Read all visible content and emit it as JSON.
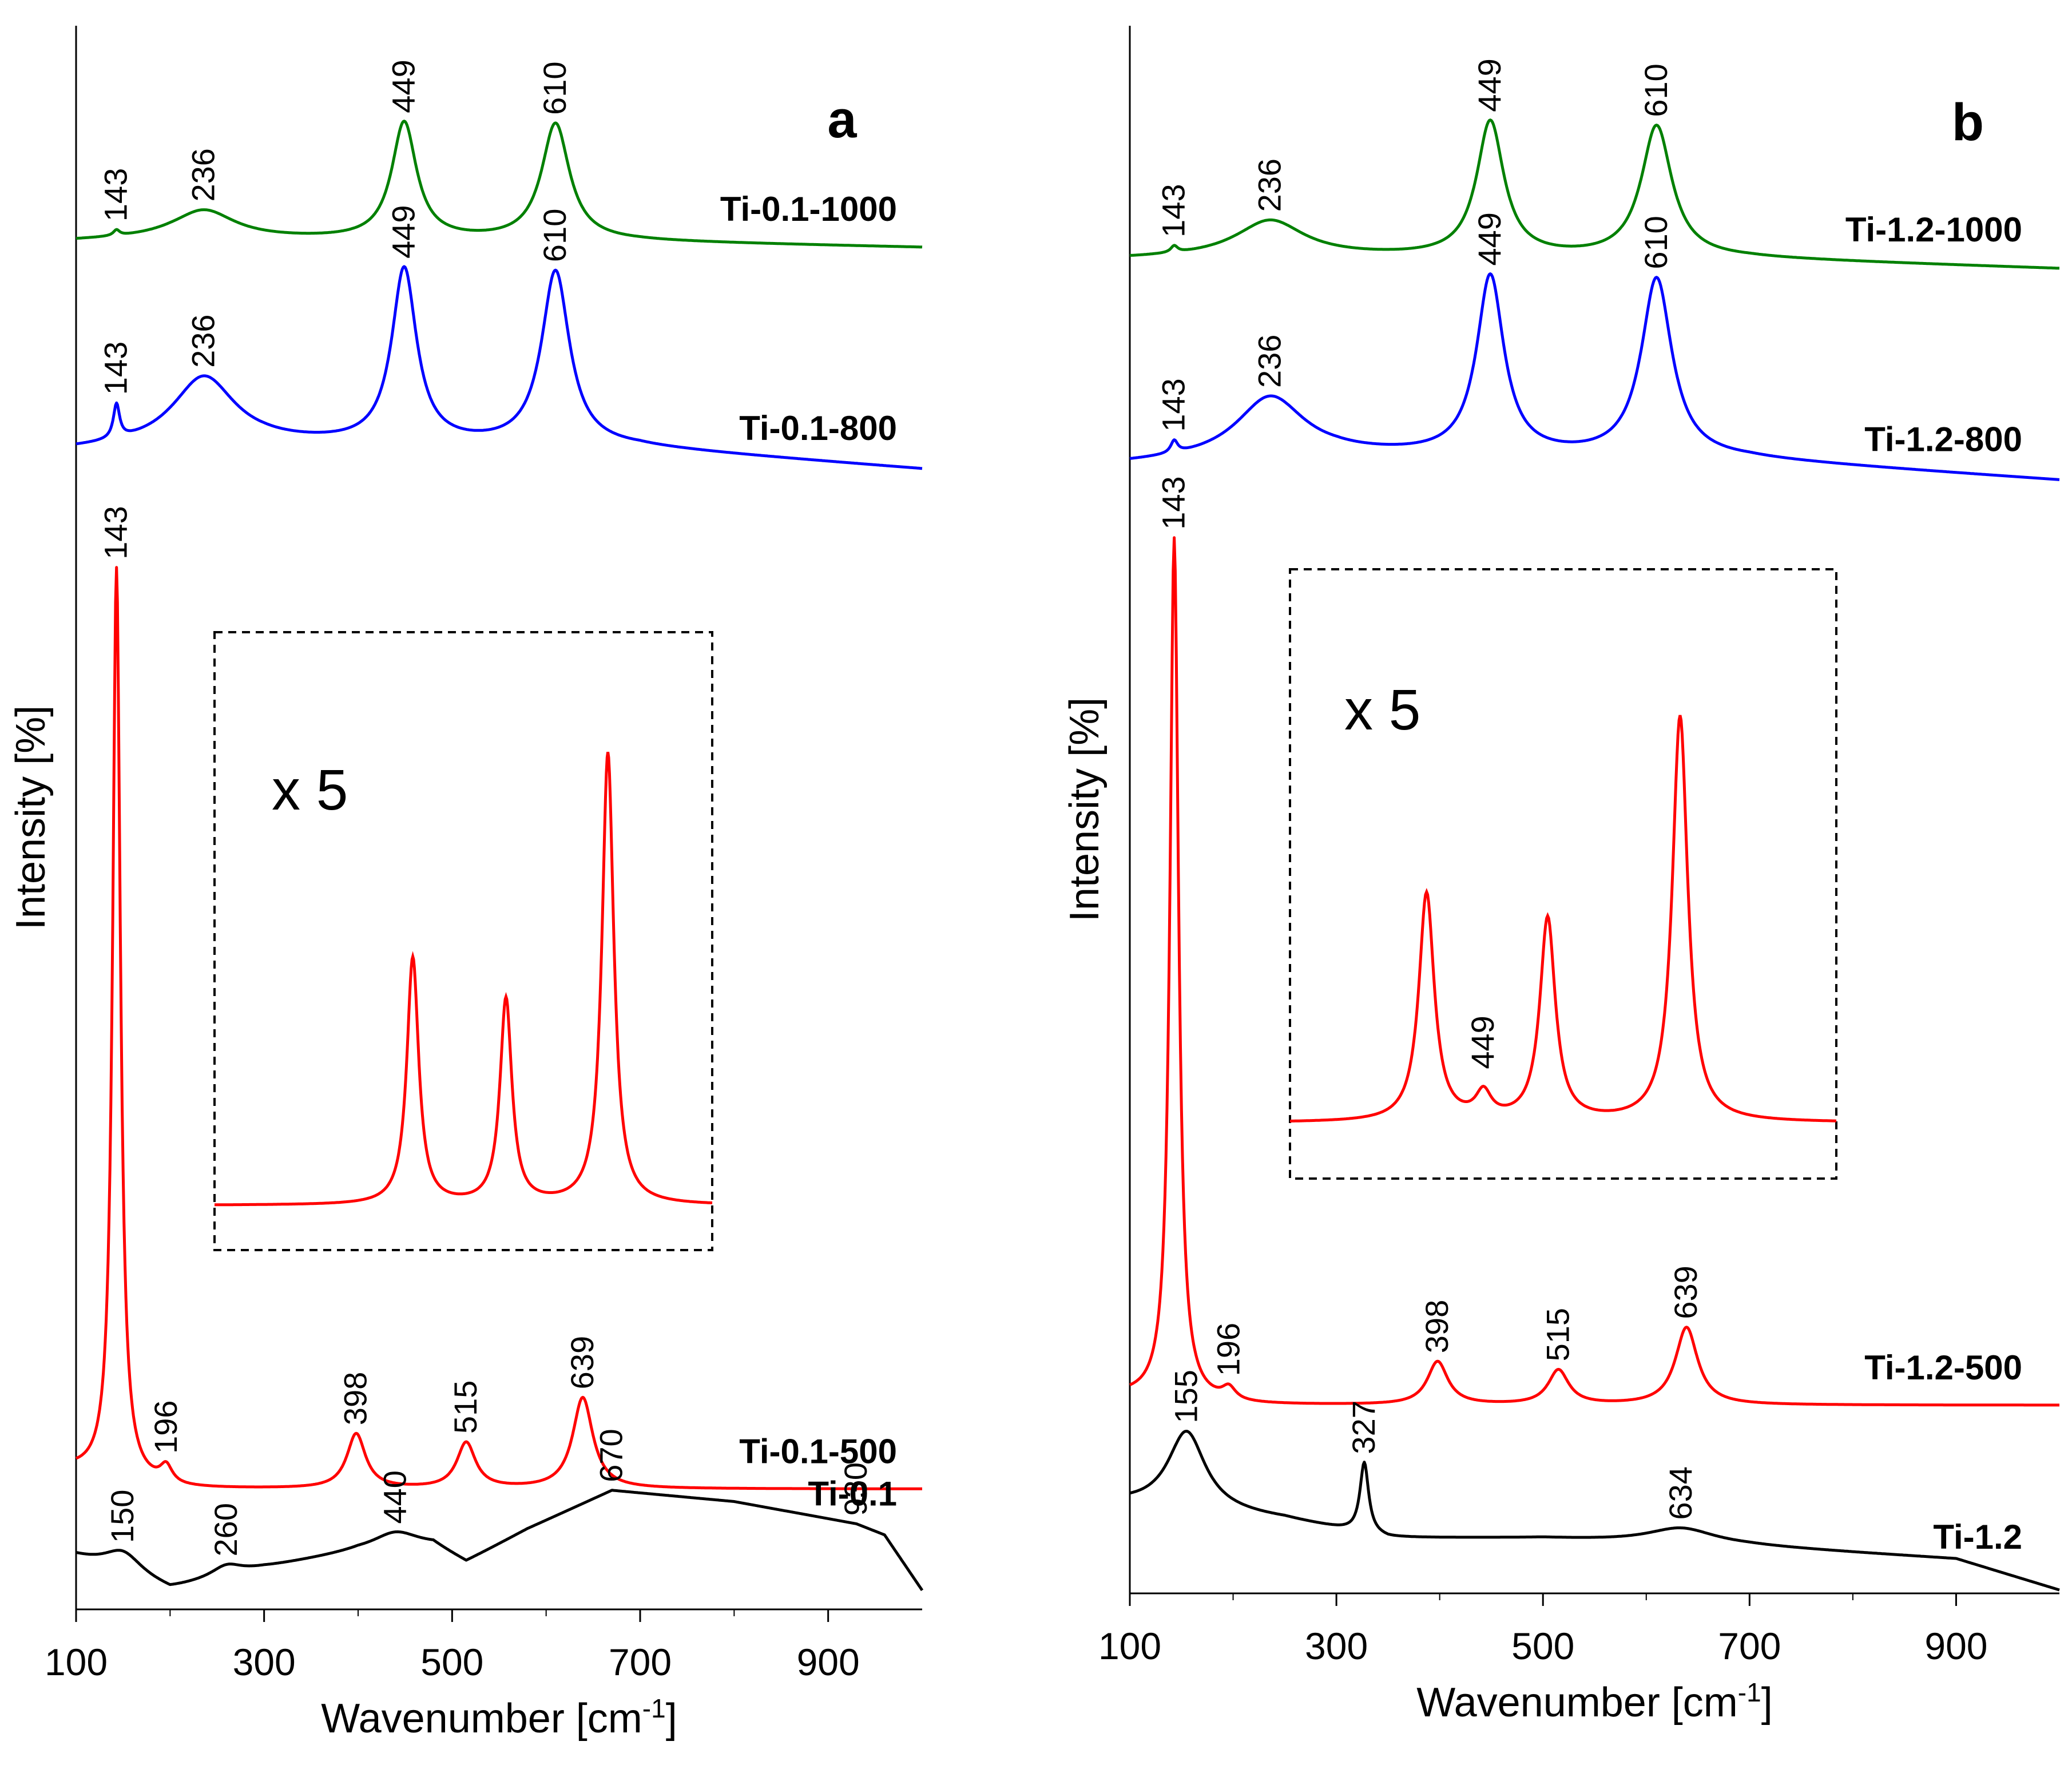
{
  "chart_data": [
    {
      "type": "line",
      "panel_label": "a",
      "xlabel": "Wavenumber [cm",
      "xlabel_sup": "-1",
      "xlabel_end": "]",
      "ylabel": "Intensity [%]",
      "xlim": [
        100,
        1000
      ],
      "xticks": [
        100,
        300,
        500,
        700,
        900
      ],
      "inset": {
        "magnification": "x 5",
        "color": "#ff0000",
        "x_span": [
          145,
          770
        ],
        "peaks": [
          {
            "x": 394,
            "h": 0.47
          },
          {
            "x": 511,
            "h": 0.39
          },
          {
            "x": 639,
            "h": 0.86
          }
        ],
        "peak_labels": []
      },
      "series": [
        {
          "name": "Ti-0.1-1000",
          "color": "#008000",
          "offset": 0.86,
          "height": 0.09,
          "baseline": [
            [
              100,
              0.045
            ],
            [
              200,
              0.06
            ],
            [
              300,
              0.055
            ],
            [
              700,
              0.04
            ],
            [
              1000,
              0.0
            ]
          ],
          "peaks": [
            {
              "x": 143,
              "h": 0.04,
              "w": 4
            },
            {
              "x": 236,
              "h": 0.2,
              "w": 40
            },
            {
              "x": 449,
              "h": 0.82,
              "w": 16
            },
            {
              "x": 610,
              "h": 0.82,
              "w": 18
            }
          ],
          "peak_labels": [
            "143",
            "236",
            "449",
            "610"
          ]
        },
        {
          "name": "Ti-0.1-800",
          "color": "#0000ff",
          "offset": 0.72,
          "height": 0.12,
          "baseline": [
            [
              100,
              0.1
            ],
            [
              200,
              0.12
            ],
            [
              300,
              0.13
            ],
            [
              700,
              0.11
            ],
            [
              1000,
              0.0
            ]
          ],
          "peaks": [
            {
              "x": 143,
              "h": 0.18,
              "w": 4
            },
            {
              "x": 236,
              "h": 0.36,
              "w": 40
            },
            {
              "x": 449,
              "h": 0.92,
              "w": 16
            },
            {
              "x": 610,
              "h": 0.92,
              "w": 18
            }
          ],
          "peak_labels": [
            "143",
            "236",
            "449",
            "610"
          ]
        },
        {
          "name": "Ti-0.1-500",
          "color": "#ff0000",
          "offset": 0.076,
          "height": 0.575,
          "baseline": [
            [
              100,
              0.02
            ],
            [
              200,
              0.0
            ],
            [
              1000,
              0.0
            ]
          ],
          "peaks": [
            {
              "x": 143,
              "h": 1.0,
              "w": 5
            },
            {
              "x": 196,
              "h": 0.02,
              "w": 8
            },
            {
              "x": 398,
              "h": 0.06,
              "w": 12
            },
            {
              "x": 515,
              "h": 0.05,
              "w": 12
            },
            {
              "x": 639,
              "h": 0.1,
              "w": 13
            }
          ],
          "peak_labels": [
            "143",
            "196",
            "398",
            "515",
            "639"
          ]
        },
        {
          "name": "Ti-0.1",
          "color": "#000000",
          "offset": 0.012,
          "height": 0.07,
          "baseline": [
            [
              100,
              0.3
            ],
            [
              200,
              0.0
            ],
            [
              300,
              0.2
            ],
            [
              400,
              0.35
            ],
            [
              480,
              0.4
            ],
            [
              515,
              0.25
            ],
            [
              580,
              0.55
            ],
            [
              670,
              0.9
            ],
            [
              800,
              0.8
            ],
            [
              930,
              0.6
            ],
            [
              960,
              0.5
            ],
            [
              1000,
              0.0
            ]
          ],
          "peaks": [
            {
              "x": 150,
              "h": 0.2,
              "w": 25
            },
            {
              "x": 260,
              "h": 0.1,
              "w": 20
            },
            {
              "x": 440,
              "h": 0.15,
              "w": 30
            }
          ],
          "peak_labels": [
            "150",
            "260",
            "440",
            "670",
            "930"
          ]
        }
      ]
    },
    {
      "type": "line",
      "panel_label": "b",
      "xlabel": "Wavenumber [cm",
      "xlabel_sup": "-1",
      "xlabel_end": "]",
      "ylabel": "Intensity [%]",
      "xlim": [
        100,
        1000
      ],
      "xticks": [
        100,
        300,
        500,
        700,
        900
      ],
      "inset": {
        "magnification": "x 5",
        "color": "#ff0000",
        "x_span": [
          262,
          790
        ],
        "peaks": [
          {
            "x": 394,
            "h": 0.45
          },
          {
            "x": 449,
            "h": 0.05
          },
          {
            "x": 511,
            "h": 0.4
          },
          {
            "x": 639,
            "h": 0.8
          }
        ],
        "peak_labels": [
          "449"
        ]
      },
      "series": [
        {
          "name": "Ti-1.2-1000",
          "color": "#008000",
          "offset": 0.845,
          "height": 0.105,
          "baseline": [
            [
              100,
              0.06
            ],
            [
              200,
              0.07
            ],
            [
              300,
              0.07
            ],
            [
              700,
              0.06
            ],
            [
              1000,
              0.0
            ]
          ],
          "peaks": [
            {
              "x": 143,
              "h": 0.04,
              "w": 4
            },
            {
              "x": 236,
              "h": 0.22,
              "w": 40
            },
            {
              "x": 449,
              "h": 0.82,
              "w": 16
            },
            {
              "x": 610,
              "h": 0.8,
              "w": 18
            }
          ],
          "peak_labels": [
            "143",
            "236",
            "449",
            "610"
          ]
        },
        {
          "name": "Ti-1.2-800",
          "color": "#0000ff",
          "offset": 0.71,
          "height": 0.13,
          "baseline": [
            [
              100,
              0.08
            ],
            [
              200,
              0.1
            ],
            [
              300,
              0.12
            ],
            [
              700,
              0.1
            ],
            [
              1000,
              0.0
            ]
          ],
          "peaks": [
            {
              "x": 143,
              "h": 0.06,
              "w": 4
            },
            {
              "x": 236,
              "h": 0.3,
              "w": 40
            },
            {
              "x": 449,
              "h": 0.88,
              "w": 16
            },
            {
              "x": 610,
              "h": 0.88,
              "w": 18
            }
          ],
          "peak_labels": [
            "143",
            "236",
            "449",
            "610"
          ]
        },
        {
          "name": "Ti-1.2-500",
          "color": "#ff0000",
          "offset": 0.12,
          "height": 0.55,
          "baseline": [
            [
              100,
              0.01
            ],
            [
              200,
              0.0
            ],
            [
              1000,
              0.0
            ]
          ],
          "peaks": [
            {
              "x": 143,
              "h": 1.0,
              "w": 5
            },
            {
              "x": 196,
              "h": 0.015,
              "w": 8
            },
            {
              "x": 398,
              "h": 0.05,
              "w": 12
            },
            {
              "x": 515,
              "h": 0.04,
              "w": 12
            },
            {
              "x": 639,
              "h": 0.09,
              "w": 13
            }
          ],
          "peak_labels": [
            "143",
            "196",
            "398",
            "515",
            "639"
          ]
        },
        {
          "name": "Ti-1.2",
          "color": "#000000",
          "offset": 0.002,
          "height": 0.1,
          "baseline": [
            [
              100,
              0.55
            ],
            [
              250,
              0.45
            ],
            [
              350,
              0.33
            ],
            [
              500,
              0.33
            ],
            [
              700,
              0.28
            ],
            [
              900,
              0.2
            ],
            [
              1000,
              0.0
            ]
          ],
          "peaks": [
            {
              "x": 155,
              "h": 0.5,
              "w": 22
            },
            {
              "x": 327,
              "h": 0.45,
              "w": 5
            },
            {
              "x": 634,
              "h": 0.1,
              "w": 40
            }
          ],
          "peak_labels": [
            "155",
            "327",
            "634"
          ]
        }
      ]
    }
  ]
}
